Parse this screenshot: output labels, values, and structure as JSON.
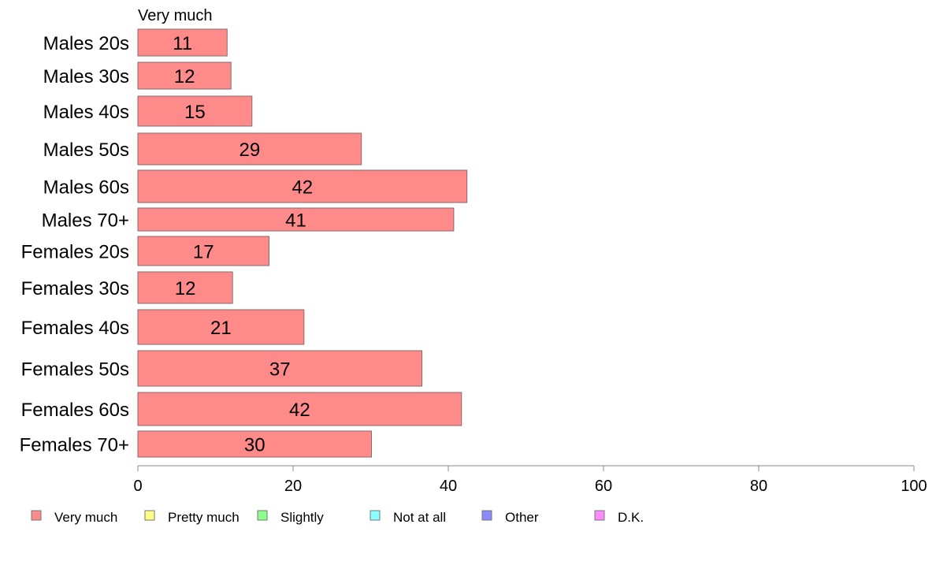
{
  "chart_data": {
    "type": "bar",
    "orientation": "horizontal",
    "stacked": true,
    "categories": [
      "Males 20s",
      "Males 30s",
      "Males 40s",
      "Males 50s",
      "Males 60s",
      "Males 70+",
      "Females 20s",
      "Females 30s",
      "Females 40s",
      "Females 50s",
      "Females 60s",
      "Females 70+"
    ],
    "series_header": "Very much",
    "series": [
      {
        "name": "Very much",
        "values": [
          11.5,
          12,
          14.7,
          28.8,
          42.4,
          40.7,
          16.9,
          12.2,
          21.4,
          36.6,
          41.7,
          30.1
        ],
        "labels": [
          "11",
          "12",
          "15",
          "29",
          "42",
          "41",
          "17",
          "12",
          "21",
          "37",
          "42",
          "30"
        ]
      }
    ],
    "legend": [
      {
        "label": "Very much",
        "color": "#ff8a8a"
      },
      {
        "label": "Pretty much",
        "color": "#ffff8a"
      },
      {
        "label": "Slightly",
        "color": "#8aff8a"
      },
      {
        "label": "Not at all",
        "color": "#8affff"
      },
      {
        "label": "Other",
        "color": "#8a8aff"
      },
      {
        "label": "D.K.",
        "color": "#ff8aff"
      }
    ],
    "legend_position": "bottom",
    "xlim": [
      0,
      100
    ],
    "xticks": [
      "0",
      "20",
      "40",
      "60",
      "80",
      "100"
    ],
    "xtick_values": [
      0,
      20,
      40,
      60,
      80,
      100
    ],
    "grid": false,
    "bar_color": "#ff8a8a",
    "bar_stroke": "#8a6a6a",
    "axis_color": "#888888"
  }
}
